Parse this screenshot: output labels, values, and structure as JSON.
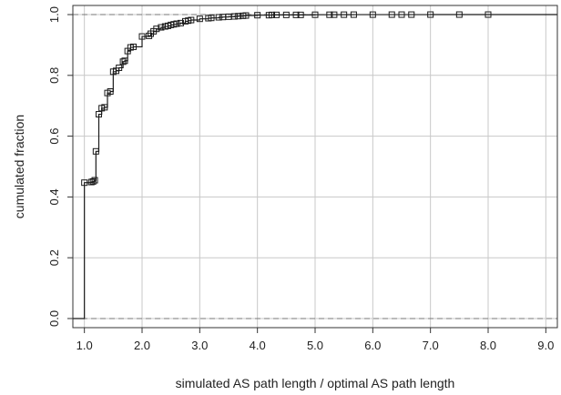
{
  "chart_data": {
    "type": "line",
    "subtype": "empirical-cdf-step",
    "xlabel": "simulated AS path length / optimal AS path length",
    "ylabel": "cumulated fraction",
    "xlim": [
      0.8,
      9.2
    ],
    "ylim": [
      -0.03,
      1.03
    ],
    "x_ticks": [
      1.0,
      2.0,
      3.0,
      4.0,
      5.0,
      6.0,
      7.0,
      8.0,
      9.0
    ],
    "x_tick_labels": [
      "1.0",
      "2.0",
      "3.0",
      "4.0",
      "5.0",
      "6.0",
      "7.0",
      "8.0",
      "9.0"
    ],
    "y_ticks": [
      0.0,
      0.2,
      0.4,
      0.6,
      0.8,
      1.0
    ],
    "y_tick_labels": [
      "0.0",
      "0.2",
      "0.4",
      "0.6",
      "0.8",
      "1.0"
    ],
    "grid": true,
    "reference_lines_y": [
      0.0,
      1.0
    ],
    "marker": "open-square",
    "line_color": "#1a1a1a",
    "grid_color": "#c8c8c8",
    "series": [
      {
        "x": [
          1.0,
          1.12,
          1.15,
          1.18,
          1.2,
          1.25,
          1.3,
          1.35,
          1.4,
          1.45,
          1.5,
          1.55,
          1.6,
          1.67,
          1.7,
          1.75,
          1.8,
          1.85,
          2.0,
          2.12,
          2.15,
          2.2,
          2.25,
          2.33,
          2.4,
          2.45,
          2.5,
          2.55,
          2.6,
          2.67,
          2.75,
          2.8,
          2.85,
          3.0,
          3.15,
          3.2,
          3.33,
          3.4,
          3.5,
          3.6,
          3.67,
          3.75,
          3.8,
          4.0,
          4.2,
          4.25,
          4.33,
          4.5,
          4.67,
          4.75,
          5.0,
          5.25,
          5.33,
          5.5,
          5.67,
          6.0,
          6.33,
          6.5,
          6.67,
          7.0,
          7.5,
          8.0
        ],
        "y": [
          0.447,
          0.449,
          0.451,
          0.455,
          0.55,
          0.672,
          0.692,
          0.695,
          0.742,
          0.747,
          0.812,
          0.815,
          0.825,
          0.845,
          0.848,
          0.88,
          0.892,
          0.894,
          0.928,
          0.93,
          0.937,
          0.945,
          0.953,
          0.958,
          0.961,
          0.963,
          0.966,
          0.968,
          0.97,
          0.972,
          0.978,
          0.98,
          0.982,
          0.986,
          0.988,
          0.989,
          0.991,
          0.992,
          0.993,
          0.994,
          0.995,
          0.996,
          0.997,
          0.998,
          0.998,
          0.999,
          0.999,
          0.999,
          0.999,
          0.999,
          0.9995,
          0.9995,
          0.9996,
          0.9997,
          0.9998,
          0.9998,
          0.9999,
          0.9999,
          0.9999,
          1.0,
          1.0,
          1.0
        ]
      }
    ]
  }
}
